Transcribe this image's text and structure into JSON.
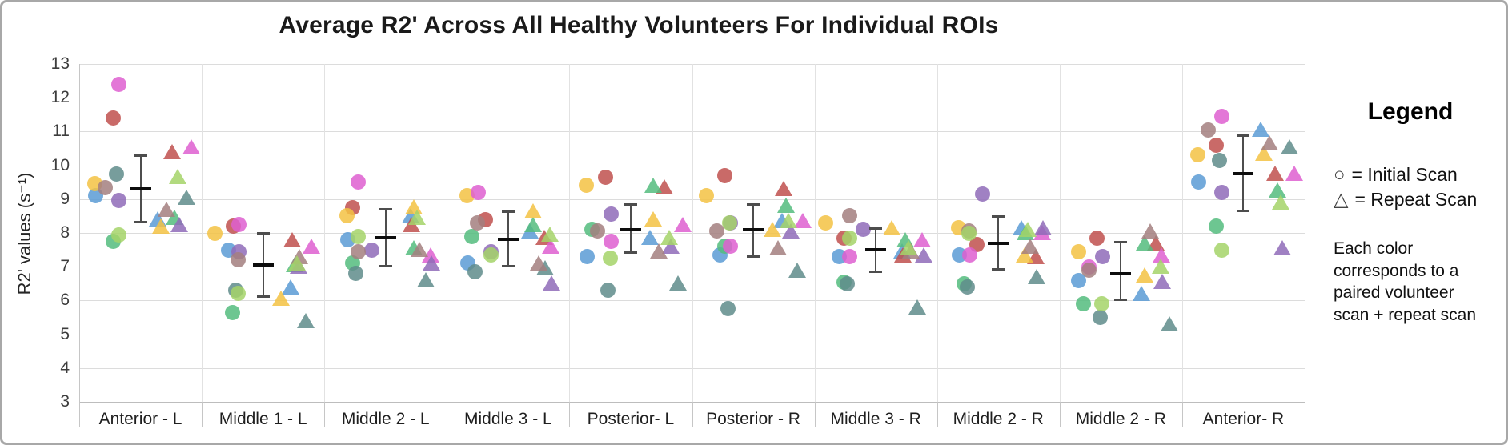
{
  "window": {
    "background": "#ffffff",
    "border_color": "#a8a8a8"
  },
  "chart_data": {
    "type": "scatter",
    "title": "Average R2' Across All Healthy Volunteers For Individual ROIs",
    "ylabel": "R2' values (s⁻¹)",
    "xlabel": "",
    "ylim": [
      3,
      13
    ],
    "yticks": [
      3,
      4,
      5,
      6,
      7,
      8,
      9,
      10,
      11,
      12,
      13
    ],
    "grid": true,
    "categories": [
      "Anterior - L",
      "Middle 1 - L",
      "Middle 2 - L",
      "Middle 3 - L",
      "Posterior- L",
      "Posterior - R",
      "Middle 3 - R",
      "Middle 2 - R",
      "Middle 2 - R",
      "Anterior- R"
    ],
    "volunteer_colors": [
      "#5B9BD5",
      "#C0504D",
      "#54BC7E",
      "#F3C243",
      "#DE5FD0",
      "#8F6BB8",
      "#5F8C8B",
      "#A37F7F",
      "#A5D368"
    ],
    "series": [
      {
        "name": "Initial Scan",
        "marker": "circle",
        "values_by_category": [
          [
            9.1,
            11.4,
            7.75,
            9.45,
            12.4,
            8.95,
            9.75,
            9.35,
            7.95
          ],
          [
            7.5,
            8.2,
            5.65,
            8.0,
            8.25,
            7.45,
            6.3,
            7.2,
            6.2
          ],
          [
            7.8,
            8.75,
            7.1,
            8.5,
            9.5,
            7.5,
            6.8,
            7.45,
            7.9
          ],
          [
            7.1,
            8.4,
            7.9,
            9.1,
            9.2,
            7.45,
            6.85,
            8.3,
            7.35
          ],
          [
            7.3,
            9.65,
            8.1,
            9.4,
            7.75,
            8.55,
            6.3,
            8.05,
            7.25
          ],
          [
            7.35,
            9.7,
            7.6,
            9.1,
            7.6,
            8.3,
            5.75,
            8.05,
            8.3
          ],
          [
            7.3,
            7.85,
            6.55,
            8.3,
            7.3,
            8.1,
            6.5,
            8.5,
            7.85
          ],
          [
            7.35,
            7.65,
            6.5,
            8.15,
            7.35,
            9.15,
            6.4,
            8.05,
            8.0
          ],
          [
            6.6,
            7.85,
            5.9,
            7.45,
            7.0,
            7.3,
            5.5,
            6.9,
            5.9
          ],
          [
            9.5,
            10.6,
            8.2,
            10.3,
            11.45,
            9.2,
            10.15,
            11.05,
            7.5
          ]
        ]
      },
      {
        "name": "Repeat Scan",
        "marker": "triangle",
        "values_by_category": [
          [
            8.35,
            10.35,
            8.4,
            8.15,
            10.5,
            8.2,
            9.0,
            8.65,
            9.6
          ],
          [
            6.35,
            7.75,
            7.0,
            6.0,
            7.55,
            6.95,
            5.35,
            7.25,
            7.05
          ],
          [
            8.45,
            8.2,
            7.5,
            8.7,
            7.3,
            7.05,
            6.55,
            7.45,
            8.4
          ],
          [
            8.0,
            7.8,
            8.2,
            8.6,
            7.55,
            6.45,
            6.9,
            7.05,
            7.9
          ],
          [
            7.8,
            9.3,
            9.35,
            8.35,
            8.2,
            7.55,
            6.45,
            7.4,
            7.8
          ],
          [
            8.3,
            9.25,
            8.75,
            8.05,
            8.3,
            8.0,
            6.85,
            7.5,
            8.3
          ],
          [
            7.4,
            7.3,
            7.75,
            8.1,
            7.75,
            7.3,
            5.75,
            7.4,
            7.5
          ],
          [
            8.1,
            7.25,
            7.95,
            7.3,
            7.95,
            8.1,
            6.65,
            7.55,
            8.05
          ],
          [
            6.15,
            7.65,
            7.65,
            6.7,
            7.3,
            6.5,
            5.25,
            8.0,
            6.95
          ],
          [
            11.0,
            9.7,
            9.2,
            10.3,
            9.7,
            7.5,
            10.5,
            10.6,
            8.85
          ]
        ]
      }
    ],
    "error_bars": [
      {
        "mean": 9.3,
        "low": 8.3,
        "high": 10.3
      },
      {
        "mean": 7.05,
        "low": 6.1,
        "high": 8.0
      },
      {
        "mean": 7.85,
        "low": 7.0,
        "high": 8.7
      },
      {
        "mean": 7.8,
        "low": 7.0,
        "high": 8.65
      },
      {
        "mean": 8.1,
        "low": 7.4,
        "high": 8.85
      },
      {
        "mean": 8.1,
        "low": 7.3,
        "high": 8.85
      },
      {
        "mean": 7.5,
        "low": 6.85,
        "high": 8.15
      },
      {
        "mean": 7.7,
        "low": 6.9,
        "high": 8.5
      },
      {
        "mean": 6.8,
        "low": 6.0,
        "high": 7.75
      },
      {
        "mean": 9.75,
        "low": 8.65,
        "high": 10.9
      }
    ],
    "layout_hints": {
      "legend_position": "right",
      "circle_dx": [
        0.18,
        0.28,
        0.23,
        0.14,
        0.29,
        0.35,
        0.28,
        0.25,
        0.31
      ],
      "triangle_dx": [
        0.69,
        0.76,
        0.73,
        0.68,
        0.88,
        0.84,
        0.85,
        0.75,
        0.79
      ],
      "errorbar_dx": 0.5
    }
  },
  "legend_panel": {
    "title": "Legend",
    "items": [
      {
        "icon": "circle-outline-icon",
        "glyph": "○",
        "label": "= Initial Scan"
      },
      {
        "icon": "triangle-outline-icon",
        "glyph": "△",
        "label": "= Repeat Scan"
      }
    ],
    "note": "Each color corresponds to a paired volunteer scan + repeat scan"
  }
}
